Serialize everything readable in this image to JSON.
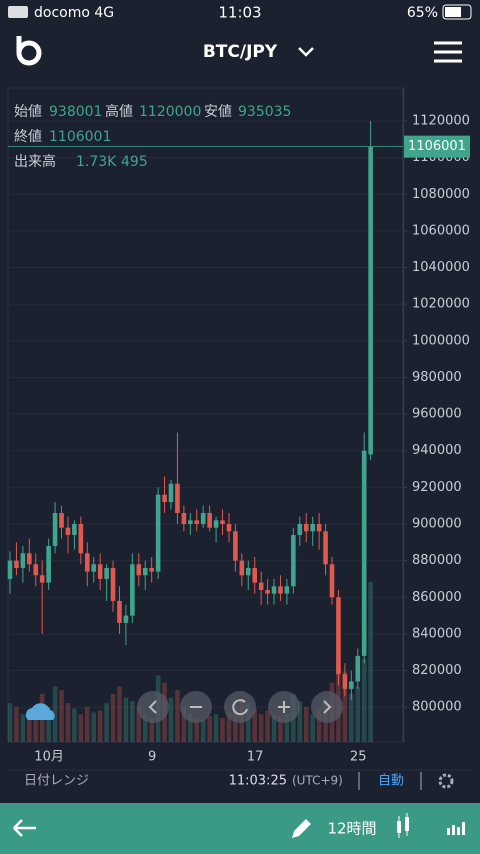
{
  "status_bar": {
    "carrier": "docomo 4G",
    "time": "11:03",
    "battery": "65%"
  },
  "header": {
    "pair": "BTC/JPY"
  },
  "chart_data": {
    "type": "candlestick",
    "info": {
      "open_label": "始値",
      "high_label": "高値",
      "low_label": "安値",
      "close_label": "終値",
      "volume_title": "出来高",
      "volume_label": "1.73K",
      "volume_ma": 495
    },
    "categories": [
      null,
      null,
      null,
      null,
      null,
      null,
      null,
      "10月",
      null,
      null,
      null,
      null,
      null,
      null,
      null,
      null,
      null,
      null,
      null,
      null,
      null,
      null,
      null,
      "9",
      null,
      null,
      null,
      null,
      null,
      null,
      null,
      null,
      null,
      null,
      null,
      null,
      null,
      null,
      null,
      "17",
      null,
      null,
      null,
      null,
      null,
      null,
      null,
      null,
      null,
      null,
      null,
      null,
      null,
      null,
      null,
      "25",
      null
    ],
    "open": [
      870000,
      880000,
      876000,
      884000,
      878000,
      872000,
      868000,
      888000,
      906000,
      898000,
      894000,
      900000,
      884000,
      874000,
      878000,
      870000,
      876000,
      858000,
      846000,
      850000,
      878000,
      872000,
      876000,
      874000,
      916000,
      912000,
      922000,
      906000,
      900000,
      902000,
      900000,
      906000,
      898000,
      902000,
      900000,
      896000,
      880000,
      872000,
      876000,
      868000,
      864000,
      862000,
      866000,
      862000,
      866000,
      894000,
      900000,
      896000,
      900000,
      896000,
      878000,
      860000,
      818000,
      810000,
      814000,
      828000,
      938001
    ],
    "high": [
      885000,
      890000,
      888000,
      892000,
      884000,
      880000,
      892000,
      912000,
      910000,
      904000,
      902000,
      904000,
      890000,
      882000,
      884000,
      878000,
      880000,
      866000,
      856000,
      884000,
      884000,
      880000,
      882000,
      920000,
      926000,
      924000,
      950000,
      910000,
      906000,
      908000,
      910000,
      910000,
      904000,
      908000,
      906000,
      900000,
      884000,
      880000,
      882000,
      874000,
      870000,
      870000,
      872000,
      870000,
      898000,
      904000,
      906000,
      904000,
      906000,
      900000,
      882000,
      864000,
      824000,
      820000,
      832000,
      950000,
      1120000
    ],
    "low": [
      862000,
      872000,
      868000,
      874000,
      866000,
      840000,
      864000,
      884000,
      892000,
      884000,
      886000,
      878000,
      866000,
      868000,
      864000,
      858000,
      852000,
      840000,
      834000,
      846000,
      866000,
      864000,
      868000,
      870000,
      906000,
      908000,
      900000,
      896000,
      894000,
      896000,
      898000,
      896000,
      890000,
      894000,
      890000,
      874000,
      866000,
      864000,
      862000,
      856000,
      856000,
      856000,
      858000,
      856000,
      862000,
      888000,
      890000,
      888000,
      886000,
      872000,
      856000,
      812000,
      806000,
      804000,
      810000,
      824000,
      935035
    ],
    "close": [
      880000,
      876000,
      884000,
      878000,
      872000,
      868000,
      888000,
      906000,
      898000,
      894000,
      900000,
      884000,
      874000,
      878000,
      870000,
      876000,
      858000,
      846000,
      850000,
      878000,
      872000,
      876000,
      874000,
      916000,
      912000,
      922000,
      906000,
      900000,
      902000,
      900000,
      906000,
      898000,
      902000,
      900000,
      896000,
      880000,
      872000,
      876000,
      868000,
      864000,
      862000,
      866000,
      862000,
      866000,
      894000,
      900000,
      896000,
      900000,
      896000,
      878000,
      860000,
      818000,
      810000,
      814000,
      828000,
      940000,
      1106001
    ],
    "volume": [
      420,
      380,
      300,
      260,
      340,
      520,
      380,
      600,
      560,
      420,
      360,
      300,
      380,
      320,
      340,
      420,
      520,
      600,
      480,
      440,
      380,
      300,
      260,
      720,
      640,
      480,
      560,
      380,
      300,
      260,
      240,
      280,
      300,
      260,
      320,
      380,
      460,
      420,
      360,
      300,
      340,
      300,
      280,
      300,
      520,
      440,
      380,
      300,
      360,
      480,
      640,
      880,
      760,
      520,
      600,
      900,
      1730
    ],
    "volume_lim": [
      0,
      2000
    ],
    "ylim": [
      781000,
      1138000
    ],
    "yticks": [
      800000,
      820000,
      840000,
      860000,
      880000,
      900000,
      920000,
      940000,
      960000,
      980000,
      1000000,
      1020000,
      1040000,
      1060000,
      1080000,
      1100000,
      1120000
    ],
    "colors": {
      "up": "#3fa58c",
      "down": "#e0594f"
    },
    "grid": true
  },
  "footer": {
    "range": "日付レンジ",
    "clock": "11:03:25",
    "timezone": "(UTC+9)",
    "mode": "自動",
    "interval": "12時間"
  }
}
